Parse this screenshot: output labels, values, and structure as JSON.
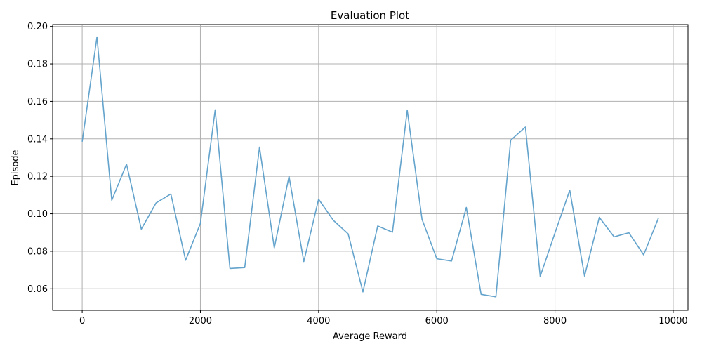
{
  "chart_data": {
    "type": "line",
    "title": "Evaluation Plot",
    "xlabel": "Average Reward",
    "ylabel": "Episode",
    "xlim": [
      -500,
      10250
    ],
    "ylim": [
      0.0485,
      0.201
    ],
    "xticks": [
      0,
      2000,
      4000,
      6000,
      8000,
      10000
    ],
    "yticks": [
      0.06,
      0.08,
      0.1,
      0.12,
      0.14,
      0.16,
      0.18,
      0.2
    ],
    "xtick_labels": [
      "0",
      "2000",
      "4000",
      "6000",
      "8000",
      "10000"
    ],
    "ytick_labels": [
      "0.06",
      "0.08",
      "0.10",
      "0.12",
      "0.14",
      "0.16",
      "0.18",
      "0.20"
    ],
    "grid": true,
    "color": "#5b9ec9",
    "series": [
      {
        "x": [
          0,
          250,
          500,
          750,
          1000,
          1250,
          1500,
          1750,
          2000,
          2250,
          2500,
          2750,
          3000,
          3250,
          3500,
          3750,
          4000,
          4250,
          4500,
          4750,
          5000,
          5250,
          5500,
          5750,
          6000,
          6250,
          6500,
          6750,
          7000,
          7250,
          7500,
          7750,
          8000,
          8250,
          8500,
          8750,
          9000,
          9250,
          9500,
          9750
        ],
        "values": [
          0.1385,
          0.1944,
          0.1072,
          0.1265,
          0.0918,
          0.1058,
          0.1106,
          0.0752,
          0.0949,
          0.1555,
          0.0708,
          0.0713,
          0.1356,
          0.0818,
          0.12,
          0.0745,
          0.1078,
          0.0965,
          0.0893,
          0.0583,
          0.0935,
          0.0902,
          0.1553,
          0.0971,
          0.076,
          0.0748,
          0.1034,
          0.057,
          0.0557,
          0.1393,
          0.1463,
          0.0666,
          0.0898,
          0.1126,
          0.0668,
          0.0981,
          0.0877,
          0.0899,
          0.0781,
          0.0977
        ]
      }
    ]
  }
}
